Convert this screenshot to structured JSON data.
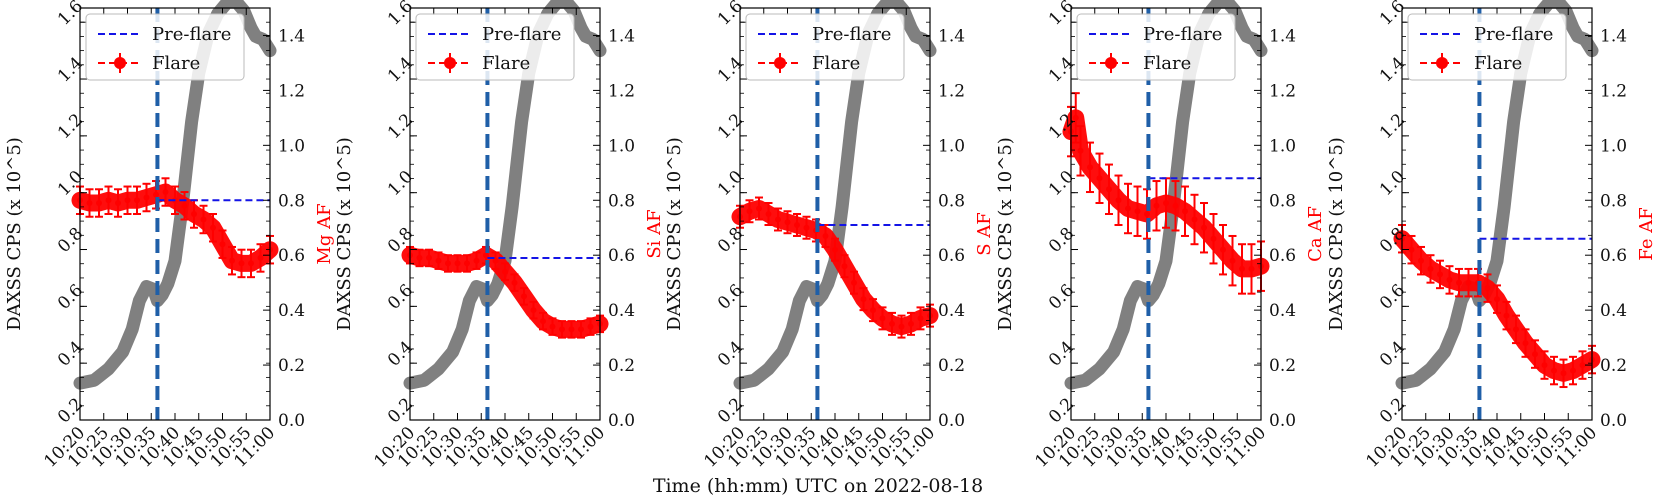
{
  "figure": {
    "xlabel": "Time (hh:mm) UTC on 2022-08-18"
  },
  "chart_data": [
    {
      "type": "line",
      "title": "",
      "xlabel": "",
      "ylabel_left": "DAXSS CPS (x 10^5)",
      "ylabel_right": "Mg AF",
      "right_color": "#ff0000",
      "x_ticks": [
        "10:20",
        "10:25",
        "10:30",
        "10:35",
        "10:40",
        "10:45",
        "10:50",
        "10:55",
        "11:00"
      ],
      "ylim_left": [
        0.2,
        1.65
      ],
      "yticks_left": [
        "0.2",
        "0.4",
        "0.6",
        "0.8",
        "1.0",
        "1.2",
        "1.4",
        "1.6"
      ],
      "ylim_right": [
        0.0,
        1.5
      ],
      "yticks_right": [
        "0.0",
        "0.2",
        "0.4",
        "0.6",
        "0.8",
        "1.0",
        "1.2",
        "1.4"
      ],
      "legend": {
        "position": "top-left",
        "entries": [
          "Pre-flare",
          "Flare"
        ]
      },
      "flare_peak_time_min": 16.3,
      "pre_flare_level": 0.8,
      "series": [
        {
          "name": "DAXSS CPS",
          "color": "#808080",
          "x": [
            0,
            3,
            6,
            9,
            11,
            12.5,
            14,
            15.5,
            16.3,
            17.3,
            18.5,
            20,
            21.5,
            22.5,
            23.5,
            25,
            27,
            29,
            31,
            33,
            34.5,
            36,
            37,
            38.5,
            40
          ],
          "y": [
            0.33,
            0.34,
            0.38,
            0.44,
            0.52,
            0.62,
            0.67,
            0.66,
            0.62,
            0.64,
            0.68,
            0.76,
            0.95,
            1.1,
            1.25,
            1.42,
            1.56,
            1.63,
            1.67,
            1.67,
            1.64,
            1.58,
            1.55,
            1.54,
            1.5
          ]
        },
        {
          "name": "Flare",
          "color": "#ff0000",
          "x": [
            0,
            2,
            4,
            6,
            8,
            10,
            12,
            14,
            16,
            18,
            20,
            22,
            24,
            26,
            28,
            30,
            32,
            34,
            36,
            38,
            40
          ],
          "y": [
            0.8,
            0.79,
            0.79,
            0.8,
            0.79,
            0.8,
            0.8,
            0.81,
            0.82,
            0.83,
            0.8,
            0.78,
            0.75,
            0.73,
            0.7,
            0.64,
            0.58,
            0.57,
            0.57,
            0.59,
            0.62
          ],
          "err": 0.05
        }
      ]
    },
    {
      "type": "line",
      "title": "",
      "xlabel": "",
      "ylabel_left": "DAXSS CPS (x 10^5)",
      "ylabel_right": "Si AF",
      "right_color": "#ff0000",
      "x_ticks": [
        "10:20",
        "10:25",
        "10:30",
        "10:35",
        "10:40",
        "10:45",
        "10:50",
        "10:55",
        "11:00"
      ],
      "ylim_left": [
        0.2,
        1.65
      ],
      "yticks_left": [
        "0.2",
        "0.4",
        "0.6",
        "0.8",
        "1.0",
        "1.2",
        "1.4",
        "1.6"
      ],
      "ylim_right": [
        0.0,
        1.5
      ],
      "yticks_right": [
        "0.0",
        "0.2",
        "0.4",
        "0.6",
        "0.8",
        "1.0",
        "1.2",
        "1.4"
      ],
      "legend": {
        "position": "top-left",
        "entries": [
          "Pre-flare",
          "Flare"
        ]
      },
      "flare_peak_time_min": 16.3,
      "pre_flare_level": 0.59,
      "series": [
        {
          "name": "DAXSS CPS",
          "color": "#808080",
          "x": [
            0,
            3,
            6,
            9,
            11,
            12.5,
            14,
            15.5,
            16.3,
            17.3,
            18.5,
            20,
            21.5,
            22.5,
            23.5,
            25,
            27,
            29,
            31,
            33,
            34.5,
            36,
            37,
            38.5,
            40
          ],
          "y": [
            0.33,
            0.34,
            0.38,
            0.44,
            0.52,
            0.62,
            0.67,
            0.66,
            0.62,
            0.64,
            0.68,
            0.76,
            0.95,
            1.1,
            1.25,
            1.42,
            1.56,
            1.63,
            1.67,
            1.67,
            1.64,
            1.58,
            1.55,
            1.54,
            1.5
          ]
        },
        {
          "name": "Flare",
          "color": "#ff0000",
          "x": [
            0,
            2,
            4,
            6,
            8,
            10,
            12,
            14,
            16,
            18,
            20,
            22,
            24,
            26,
            28,
            30,
            32,
            34,
            36,
            38,
            40
          ],
          "y": [
            0.6,
            0.59,
            0.59,
            0.58,
            0.57,
            0.57,
            0.57,
            0.58,
            0.6,
            0.58,
            0.54,
            0.5,
            0.45,
            0.4,
            0.36,
            0.34,
            0.33,
            0.33,
            0.33,
            0.34,
            0.35
          ],
          "err": 0.03
        }
      ]
    },
    {
      "type": "line",
      "title": "",
      "xlabel": "",
      "ylabel_left": "DAXSS CPS (x 10^5)",
      "ylabel_right": "S AF",
      "right_color": "#ff0000",
      "x_ticks": [
        "10:20",
        "10:25",
        "10:30",
        "10:35",
        "10:40",
        "10:45",
        "10:50",
        "10:55",
        "11:00"
      ],
      "ylim_left": [
        0.2,
        1.65
      ],
      "yticks_left": [
        "0.2",
        "0.4",
        "0.6",
        "0.8",
        "1.0",
        "1.2",
        "1.4",
        "1.6"
      ],
      "ylim_right": [
        0.0,
        1.5
      ],
      "yticks_right": [
        "0.0",
        "0.2",
        "0.4",
        "0.6",
        "0.8",
        "1.0",
        "1.2",
        "1.4"
      ],
      "legend": {
        "position": "top-left",
        "entries": [
          "Pre-flare",
          "Flare"
        ]
      },
      "flare_peak_time_min": 16.3,
      "pre_flare_level": 0.71,
      "series": [
        {
          "name": "DAXSS CPS",
          "color": "#808080",
          "x": [
            0,
            3,
            6,
            9,
            11,
            12.5,
            14,
            15.5,
            16.3,
            17.3,
            18.5,
            20,
            21.5,
            22.5,
            23.5,
            25,
            27,
            29,
            31,
            33,
            34.5,
            36,
            37,
            38.5,
            40
          ],
          "y": [
            0.33,
            0.34,
            0.38,
            0.44,
            0.52,
            0.62,
            0.67,
            0.66,
            0.62,
            0.64,
            0.68,
            0.76,
            0.95,
            1.1,
            1.25,
            1.42,
            1.56,
            1.63,
            1.67,
            1.67,
            1.64,
            1.58,
            1.55,
            1.54,
            1.5
          ]
        },
        {
          "name": "Flare",
          "color": "#ff0000",
          "x": [
            0,
            2,
            4,
            6,
            8,
            10,
            12,
            14,
            16,
            18,
            20,
            22,
            24,
            26,
            28,
            30,
            32,
            34,
            36,
            38,
            40
          ],
          "y": [
            0.74,
            0.76,
            0.77,
            0.75,
            0.73,
            0.72,
            0.71,
            0.7,
            0.69,
            0.67,
            0.62,
            0.56,
            0.5,
            0.44,
            0.4,
            0.37,
            0.35,
            0.34,
            0.35,
            0.37,
            0.38
          ],
          "err": 0.04
        }
      ]
    },
    {
      "type": "line",
      "title": "",
      "xlabel": "",
      "ylabel_left": "DAXSS CPS (x 10^5)",
      "ylabel_right": "Ca AF",
      "right_color": "#ff0000",
      "x_ticks": [
        "10:20",
        "10:25",
        "10:30",
        "10:35",
        "10:40",
        "10:45",
        "10:50",
        "10:55",
        "11:00"
      ],
      "ylim_left": [
        0.2,
        1.65
      ],
      "yticks_left": [
        "0.2",
        "0.4",
        "0.6",
        "0.8",
        "1.0",
        "1.2",
        "1.4",
        "1.6"
      ],
      "ylim_right": [
        0.0,
        1.5
      ],
      "yticks_right": [
        "0.0",
        "0.2",
        "0.4",
        "0.6",
        "0.8",
        "1.0",
        "1.2",
        "1.4"
      ],
      "legend": {
        "position": "top-left",
        "entries": [
          "Pre-flare",
          "Flare"
        ]
      },
      "flare_peak_time_min": 16.3,
      "pre_flare_level": 0.88,
      "series": [
        {
          "name": "DAXSS CPS",
          "color": "#808080",
          "x": [
            0,
            3,
            6,
            9,
            11,
            12.5,
            14,
            15.5,
            16.3,
            17.3,
            18.5,
            20,
            21.5,
            22.5,
            23.5,
            25,
            27,
            29,
            31,
            33,
            34.5,
            36,
            37,
            38.5,
            40
          ],
          "y": [
            0.33,
            0.34,
            0.38,
            0.44,
            0.52,
            0.62,
            0.67,
            0.66,
            0.62,
            0.64,
            0.68,
            0.76,
            0.95,
            1.1,
            1.25,
            1.42,
            1.56,
            1.63,
            1.67,
            1.67,
            1.64,
            1.58,
            1.55,
            1.54,
            1.5
          ]
        },
        {
          "name": "Flare",
          "color": "#ff0000",
          "x": [
            0,
            1,
            2,
            4,
            6,
            8,
            10,
            12,
            14,
            16,
            18,
            20,
            22,
            24,
            26,
            28,
            30,
            32,
            34,
            36,
            38,
            40
          ],
          "y": [
            1.05,
            1.1,
            0.98,
            0.92,
            0.88,
            0.84,
            0.8,
            0.77,
            0.76,
            0.75,
            0.78,
            0.79,
            0.78,
            0.76,
            0.73,
            0.7,
            0.66,
            0.62,
            0.58,
            0.55,
            0.55,
            0.56
          ],
          "err": 0.09
        }
      ]
    },
    {
      "type": "line",
      "title": "",
      "xlabel": "",
      "ylabel_left": "DAXSS CPS (x 10^5)",
      "ylabel_right": "Fe AF",
      "right_color": "#ff0000",
      "x_ticks": [
        "10:20",
        "10:25",
        "10:30",
        "10:35",
        "10:40",
        "10:45",
        "10:50",
        "10:55",
        "11:00"
      ],
      "ylim_left": [
        0.2,
        1.65
      ],
      "yticks_left": [
        "0.2",
        "0.4",
        "0.6",
        "0.8",
        "1.0",
        "1.2",
        "1.4",
        "1.6"
      ],
      "ylim_right": [
        0.0,
        1.5
      ],
      "yticks_right": [
        "0.0",
        "0.2",
        "0.4",
        "0.6",
        "0.8",
        "1.0",
        "1.2",
        "1.4"
      ],
      "legend": {
        "position": "top-left",
        "entries": [
          "Pre-flare",
          "Flare"
        ]
      },
      "flare_peak_time_min": 16.3,
      "pre_flare_level": 0.66,
      "series": [
        {
          "name": "DAXSS CPS",
          "color": "#808080",
          "x": [
            0,
            3,
            6,
            9,
            11,
            12.5,
            14,
            15.5,
            16.3,
            17.3,
            18.5,
            20,
            21.5,
            22.5,
            23.5,
            25,
            27,
            29,
            31,
            33,
            34.5,
            36,
            37,
            38.5,
            40
          ],
          "y": [
            0.33,
            0.34,
            0.38,
            0.44,
            0.52,
            0.62,
            0.67,
            0.66,
            0.62,
            0.64,
            0.68,
            0.76,
            0.95,
            1.1,
            1.25,
            1.42,
            1.56,
            1.63,
            1.67,
            1.67,
            1.64,
            1.58,
            1.55,
            1.54,
            1.5
          ]
        },
        {
          "name": "Flare",
          "color": "#ff0000",
          "x": [
            0,
            2,
            4,
            6,
            8,
            10,
            12,
            14,
            16,
            18,
            20,
            22,
            24,
            26,
            28,
            30,
            32,
            34,
            36,
            38,
            40
          ],
          "y": [
            0.66,
            0.62,
            0.58,
            0.55,
            0.53,
            0.51,
            0.5,
            0.5,
            0.5,
            0.48,
            0.44,
            0.38,
            0.33,
            0.28,
            0.24,
            0.2,
            0.18,
            0.17,
            0.18,
            0.2,
            0.22
          ],
          "err": 0.05
        }
      ]
    }
  ]
}
